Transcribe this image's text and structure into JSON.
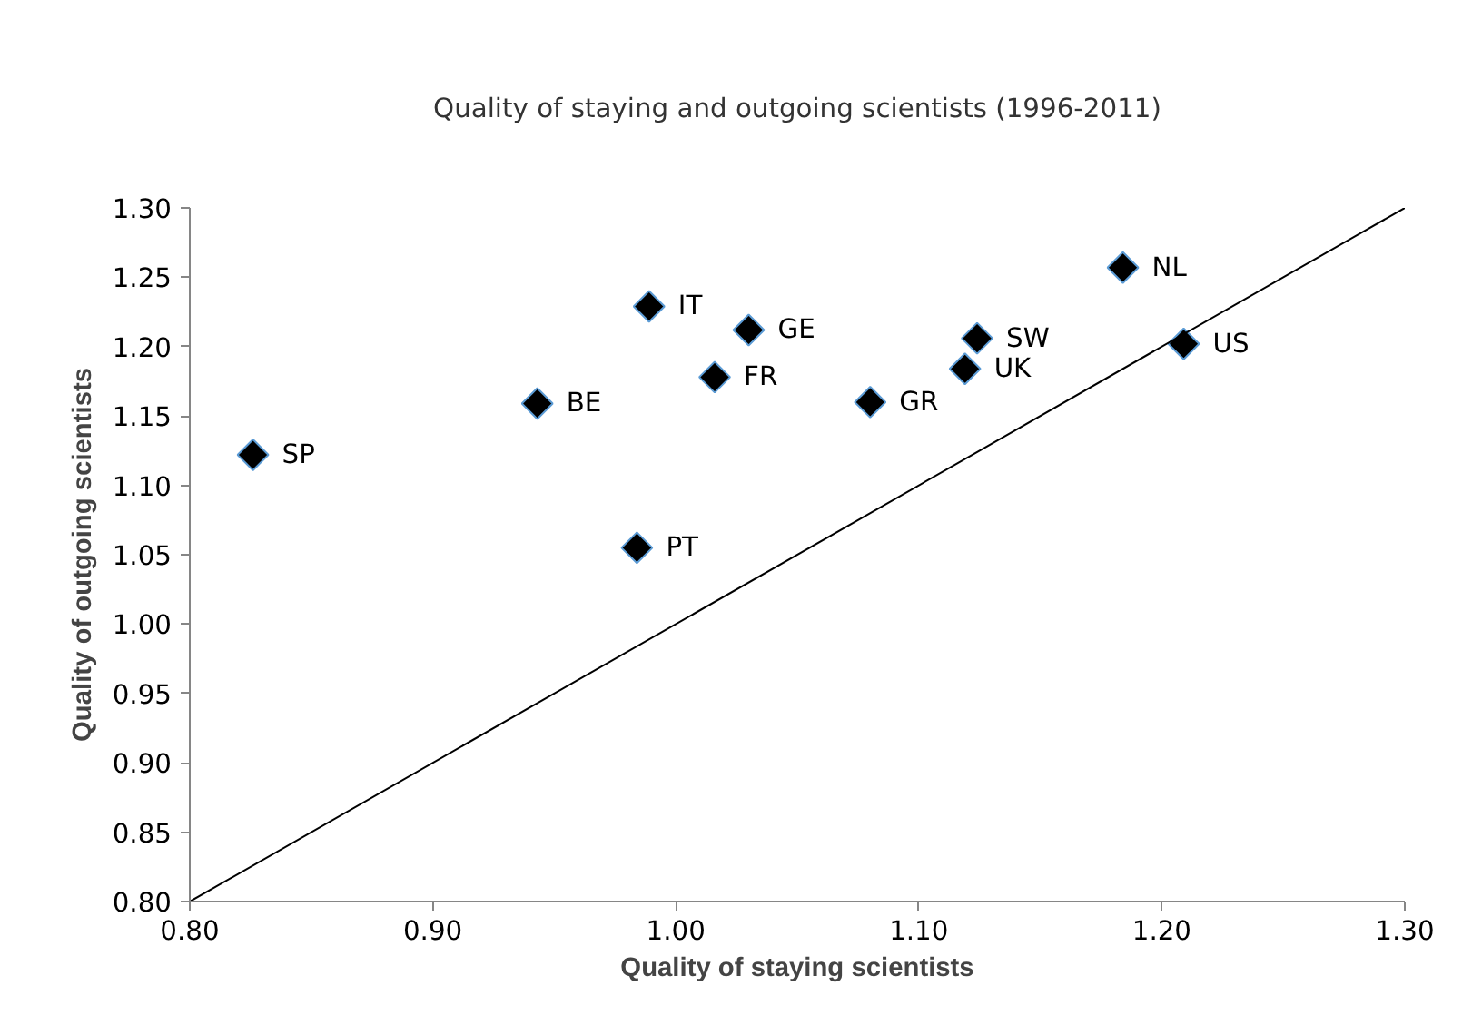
{
  "chart_data": {
    "type": "scatter",
    "title": "Quality of staying and outgoing scientists (1996-2011)",
    "xlabel": "Quality of staying scientists",
    "ylabel": "Quality of outgoing scientists",
    "x": [
      0.826,
      0.943,
      0.989,
      0.984,
      1.03,
      1.016,
      1.08,
      1.124,
      1.119,
      1.184,
      1.209
    ],
    "series": [
      {
        "color": "#000000",
        "values": [
          1.122,
          1.159,
          1.229,
          1.055,
          1.212,
          1.178,
          1.16,
          1.206,
          1.184,
          1.257,
          1.202
        ]
      },
      {
        "type": "line",
        "color": "#000000",
        "x": [
          0.8,
          1.3
        ],
        "values": [
          0.8,
          1.3
        ],
        "marker": "none"
      }
    ],
    "annotations": [
      {
        "text": "SP",
        "x": 0.826,
        "y": 1.122
      },
      {
        "text": "BE",
        "x": 0.943,
        "y": 1.159
      },
      {
        "text": "IT",
        "x": 0.989,
        "y": 1.229
      },
      {
        "text": "PT",
        "x": 0.984,
        "y": 1.055
      },
      {
        "text": "GE",
        "x": 1.03,
        "y": 1.212
      },
      {
        "text": "FR",
        "x": 1.016,
        "y": 1.178
      },
      {
        "text": "GR",
        "x": 1.08,
        "y": 1.16
      },
      {
        "text": "SW",
        "x": 1.124,
        "y": 1.206
      },
      {
        "text": "UK",
        "x": 1.119,
        "y": 1.184
      },
      {
        "text": "NL",
        "x": 1.184,
        "y": 1.257
      },
      {
        "text": "US",
        "x": 1.209,
        "y": 1.202
      }
    ],
    "xlim": [
      0.8,
      1.3
    ],
    "xticks": [
      {
        "value": 0.8,
        "label": "0.80"
      },
      {
        "value": 0.9,
        "label": "0.90"
      },
      {
        "value": 1.0,
        "label": "1.00"
      },
      {
        "value": 1.1,
        "label": "1.10"
      },
      {
        "value": 1.2,
        "label": "1.20"
      },
      {
        "value": 1.3,
        "label": "1.30"
      }
    ],
    "ylim": [
      0.8,
      1.3
    ],
    "yticks": [
      {
        "value": 0.8,
        "label": "0.80"
      },
      {
        "value": 0.85,
        "label": "0.85"
      },
      {
        "value": 0.9,
        "label": "0.90"
      },
      {
        "value": 0.95,
        "label": "0.95"
      },
      {
        "value": 1.0,
        "label": "1.00"
      },
      {
        "value": 1.05,
        "label": "1.05"
      },
      {
        "value": 1.1,
        "label": "1.10"
      },
      {
        "value": 1.15,
        "label": "1.15"
      },
      {
        "value": 1.2,
        "label": "1.20"
      },
      {
        "value": 1.25,
        "label": "1.25"
      },
      {
        "value": 1.3,
        "label": "1.30"
      }
    ],
    "grid": false,
    "marker": "diamond"
  }
}
